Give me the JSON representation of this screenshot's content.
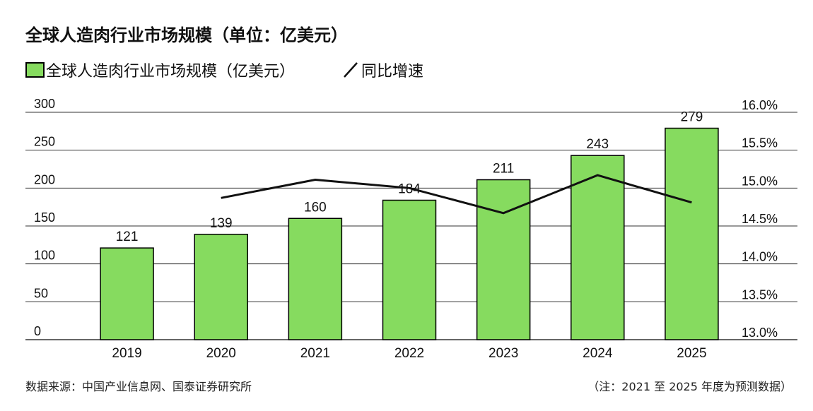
{
  "title": "全球人造肉行业市场规模（单位：亿美元）",
  "legend": {
    "bar_label": "全球人造肉行业市场规模（亿美元）",
    "line_label": "同比增速"
  },
  "footer": {
    "source": "数据来源：中国产业信息网、国泰证券研究所",
    "note": "（注：2021 至 2025 年度为预测数据）"
  },
  "colors": {
    "bar": "#86db5f",
    "line": "#111111",
    "grid": "#333333"
  },
  "chart_data": {
    "type": "bar",
    "categories": [
      "2019",
      "2020",
      "2021",
      "2022",
      "2023",
      "2024",
      "2025"
    ],
    "series": [
      {
        "name": "全球人造肉行业市场规模（亿美元）",
        "type": "bar",
        "axis": "left",
        "values": [
          121,
          139,
          160,
          184,
          211,
          243,
          279
        ]
      },
      {
        "name": "同比增速",
        "type": "line",
        "axis": "right",
        "values": [
          null,
          14.87,
          15.11,
          15.0,
          14.67,
          15.17,
          14.81
        ]
      }
    ],
    "y_left": {
      "min": 0,
      "max": 300,
      "ticks": [
        "0",
        "50",
        "100",
        "150",
        "200",
        "250",
        "300"
      ]
    },
    "y_right": {
      "min": 13.0,
      "max": 16.0,
      "ticks": [
        "13.0%",
        "13.5%",
        "14.0%",
        "14.5%",
        "15.0%",
        "15.5%",
        "16.0%"
      ]
    },
    "data_labels": [
      "121",
      "139",
      "160",
      "184",
      "211",
      "243",
      "279"
    ],
    "grid": true
  }
}
